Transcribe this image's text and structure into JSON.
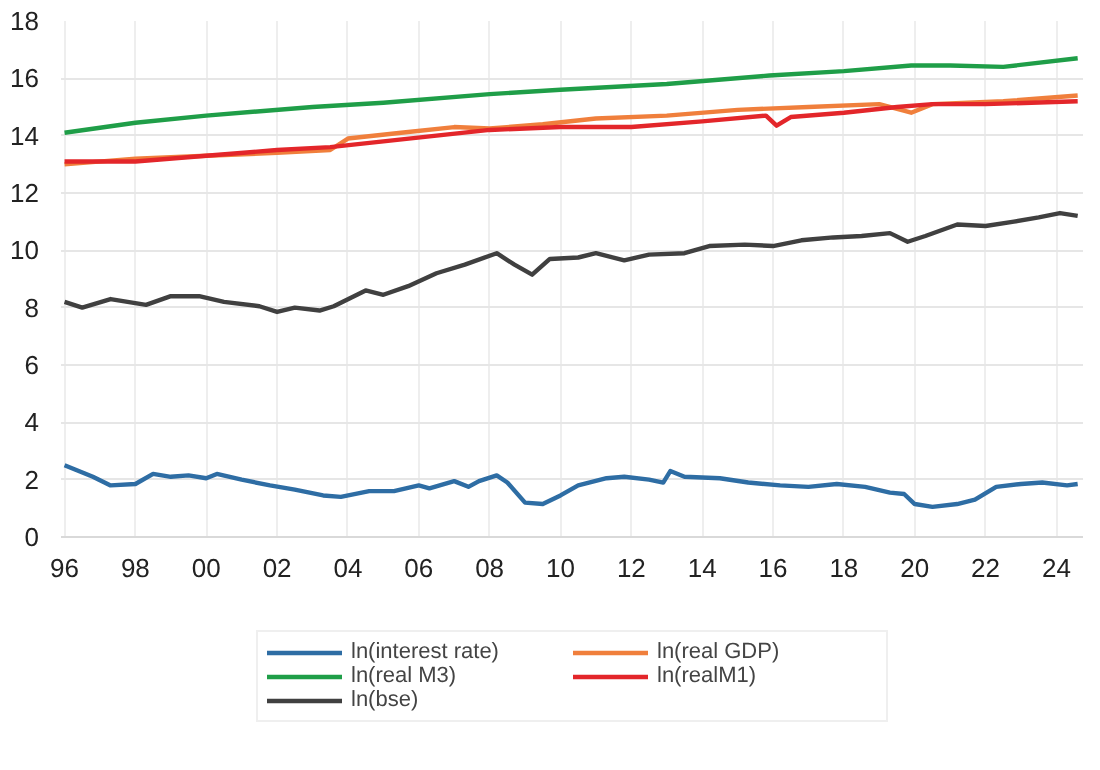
{
  "chart_data": {
    "type": "line",
    "xlim": [
      1995.9,
      2024.75
    ],
    "ylim": [
      0,
      18
    ],
    "xticks": [
      {
        "value": 1996,
        "label": "96"
      },
      {
        "value": 1998,
        "label": "98"
      },
      {
        "value": 2000,
        "label": "00"
      },
      {
        "value": 2002,
        "label": "02"
      },
      {
        "value": 2004,
        "label": "04"
      },
      {
        "value": 2006,
        "label": "06"
      },
      {
        "value": 2008,
        "label": "08"
      },
      {
        "value": 2010,
        "label": "10"
      },
      {
        "value": 2012,
        "label": "12"
      },
      {
        "value": 2014,
        "label": "14"
      },
      {
        "value": 2016,
        "label": "16"
      },
      {
        "value": 2018,
        "label": "18"
      },
      {
        "value": 2020,
        "label": "20"
      },
      {
        "value": 2022,
        "label": "22"
      },
      {
        "value": 2024,
        "label": "24"
      }
    ],
    "yticks": [
      0,
      2,
      4,
      6,
      8,
      10,
      12,
      14,
      16,
      18
    ],
    "grid": true,
    "legend": "bottom",
    "marker": "none",
    "line_style": "solid",
    "series": [
      {
        "name": "ln(interest rate)",
        "color": "#2e6da4",
        "x": [
          1996,
          1996.8,
          1997.3,
          1998,
          1998.5,
          1999,
          1999.5,
          2000,
          2000.3,
          2001,
          2001.8,
          2002.5,
          2003.3,
          2003.8,
          2004.6,
          2005.3,
          2006,
          2006.3,
          2007,
          2007.4,
          2007.7,
          2008.2,
          2008.5,
          2009,
          2009.5,
          2010,
          2010.5,
          2011.3,
          2011.8,
          2012.5,
          2012.9,
          2013.1,
          2013.5,
          2014.5,
          2015.3,
          2016.2,
          2017,
          2017.8,
          2018.6,
          2019.3,
          2019.7,
          2020,
          2020.5,
          2021.2,
          2021.7,
          2022.3,
          2023,
          2023.6,
          2024.3,
          2024.6
        ],
        "values": [
          2.5,
          2.1,
          1.8,
          1.85,
          2.2,
          2.1,
          2.15,
          2.05,
          2.2,
          2.0,
          1.8,
          1.65,
          1.45,
          1.4,
          1.6,
          1.6,
          1.8,
          1.7,
          1.95,
          1.75,
          1.95,
          2.15,
          1.9,
          1.2,
          1.15,
          1.45,
          1.8,
          2.05,
          2.1,
          2.0,
          1.9,
          2.3,
          2.1,
          2.05,
          1.9,
          1.8,
          1.75,
          1.85,
          1.75,
          1.55,
          1.5,
          1.15,
          1.05,
          1.15,
          1.3,
          1.75,
          1.85,
          1.9,
          1.8,
          1.85
        ]
      },
      {
        "name": "ln(real GDP)",
        "color": "#f07f3c",
        "x": [
          1996,
          1998,
          2000,
          2002,
          2003.5,
          2004,
          2005.5,
          2007,
          2008,
          2009.5,
          2011,
          2013,
          2015,
          2017,
          2019,
          2019.9,
          2020.5,
          2022.5,
          2024.6
        ],
        "values": [
          13.0,
          13.2,
          13.3,
          13.4,
          13.5,
          13.9,
          14.1,
          14.3,
          14.25,
          14.4,
          14.6,
          14.7,
          14.9,
          15.0,
          15.1,
          14.8,
          15.1,
          15.2,
          15.4
        ]
      },
      {
        "name": "ln(real M3)",
        "color": "#1f9e48",
        "x": [
          1996,
          1998,
          2000,
          2003,
          2005,
          2008,
          2010,
          2013,
          2015.9,
          2018,
          2019.9,
          2021,
          2022.5,
          2024.6
        ],
        "values": [
          14.1,
          14.45,
          14.7,
          15.0,
          15.15,
          15.45,
          15.6,
          15.8,
          16.1,
          16.25,
          16.45,
          16.45,
          16.4,
          16.7
        ]
      },
      {
        "name": "ln(realM1)",
        "color": "#e3262a",
        "x": [
          1996,
          1998,
          2000,
          2002,
          2003.5,
          2005,
          2006.5,
          2008,
          2010,
          2012,
          2014,
          2015.8,
          2016.1,
          2016.5,
          2018,
          2019.5,
          2020.5,
          2022,
          2024.6
        ],
        "values": [
          13.1,
          13.1,
          13.3,
          13.5,
          13.6,
          13.8,
          14.0,
          14.2,
          14.3,
          14.3,
          14.5,
          14.7,
          14.35,
          14.65,
          14.8,
          15.0,
          15.1,
          15.1,
          15.2
        ]
      },
      {
        "name": "ln(bse)",
        "color": "#404040",
        "x": [
          1996,
          1996.5,
          1997.3,
          1998.3,
          1999,
          1999.8,
          2000.5,
          2001.5,
          2002,
          2002.5,
          2003.2,
          2003.6,
          2004.5,
          2005,
          2005.7,
          2006.5,
          2007.3,
          2008.2,
          2008.7,
          2009.2,
          2009.7,
          2010.5,
          2011,
          2011.8,
          2012.5,
          2013.5,
          2014.2,
          2015.2,
          2016,
          2016.8,
          2017.7,
          2018.5,
          2019.3,
          2019.8,
          2020.3,
          2021.2,
          2022,
          2022.8,
          2023.5,
          2024.1,
          2024.6
        ],
        "values": [
          8.2,
          8.0,
          8.3,
          8.1,
          8.4,
          8.4,
          8.2,
          8.05,
          7.85,
          8.0,
          7.9,
          8.05,
          8.6,
          8.45,
          8.75,
          9.2,
          9.5,
          9.9,
          9.5,
          9.15,
          9.7,
          9.75,
          9.9,
          9.65,
          9.85,
          9.9,
          10.15,
          10.2,
          10.15,
          10.35,
          10.45,
          10.5,
          10.6,
          10.3,
          10.5,
          10.9,
          10.85,
          11.0,
          11.15,
          11.3,
          11.2
        ]
      }
    ]
  }
}
